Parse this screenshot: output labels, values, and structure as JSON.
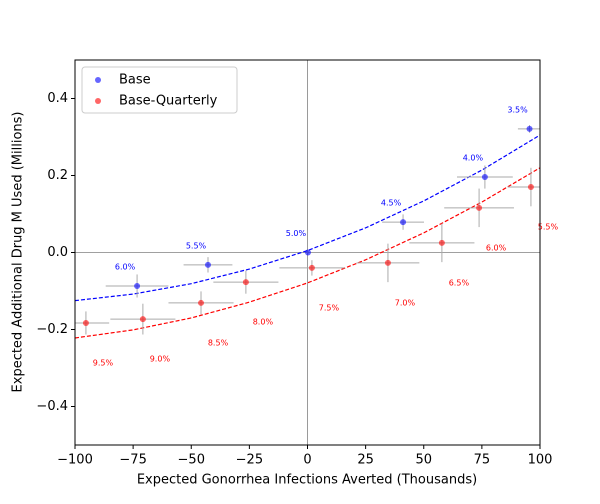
{
  "chart_data": {
    "type": "scatter",
    "xlabel": "Expected Gonorrhea Infections Averted (Thousands)",
    "ylabel": "Expected Additional Drug M Used (Millions)",
    "xlim": [
      -100,
      100
    ],
    "ylim": [
      -0.5,
      0.5
    ],
    "xticks": [
      {
        "value": -100,
        "label": "−100"
      },
      {
        "value": -75,
        "label": "−75"
      },
      {
        "value": -50,
        "label": "−50"
      },
      {
        "value": -25,
        "label": "−25"
      },
      0,
      25,
      50,
      75,
      100
    ],
    "yticks": [
      {
        "value": -0.4,
        "label": "−0.4"
      },
      {
        "value": -0.2,
        "label": "−0.2"
      },
      {
        "value": 0,
        "label": "0.0"
      },
      {
        "value": 0.2,
        "label": "0.2"
      },
      {
        "value": 0.4,
        "label": "0.4"
      }
    ],
    "hlines": [
      0
    ],
    "vlines": [
      0
    ],
    "legend": "upper left",
    "series": [
      {
        "name": "Base",
        "color": "#0000ff",
        "x": [
          -73.3,
          -42.8,
          0.2,
          41.1,
          76.3,
          95.5
        ],
        "values": [
          -0.087,
          -0.032,
          0.0,
          0.079,
          0.196,
          0.321
        ],
        "xerr": [
          13.5,
          10.5,
          1,
          9,
          12,
          5
        ],
        "yerr": [
          0.03,
          0.02,
          0.005,
          0.02,
          0.03,
          0.01
        ],
        "labels": [
          "6.0%",
          "5.5%",
          "5.0%",
          "4.5%",
          "4.0%",
          "3.5%"
        ],
        "trend": {
          "x": [
            -100,
            -75,
            -50,
            -25,
            0,
            25,
            50,
            75,
            100
          ],
          "values": [
            -0.125,
            -0.108,
            -0.081,
            -0.043,
            0.005,
            0.064,
            0.134,
            0.214,
            0.305
          ]
        }
      },
      {
        "name": "Base-Quarterly",
        "color": "#ff0000",
        "x": [
          -95.3,
          -70.8,
          -45.8,
          -26.5,
          1.9,
          34.6,
          57.8,
          73.8,
          96.1
        ],
        "values": [
          -0.183,
          -0.173,
          -0.131,
          -0.077,
          -0.04,
          -0.027,
          0.025,
          0.116,
          0.17
        ],
        "xerr": [
          10,
          14,
          14,
          14,
          14,
          13.5,
          14,
          15,
          10
        ],
        "yerr": [
          0.03,
          0.04,
          0.03,
          0.03,
          0.02,
          0.05,
          0.05,
          0.05,
          0.05
        ],
        "labels": [
          "9.5%",
          "9.0%",
          "8.5%",
          "8.0%",
          "7.5%",
          "7.0%",
          "6.5%",
          "6.0%",
          "5.5%"
        ],
        "trend": {
          "x": [
            -100,
            -75,
            -50,
            -25,
            0,
            25,
            50,
            75,
            100
          ],
          "values": [
            -0.222,
            -0.201,
            -0.17,
            -0.129,
            -0.079,
            -0.019,
            0.051,
            0.131,
            0.22
          ]
        }
      }
    ]
  }
}
